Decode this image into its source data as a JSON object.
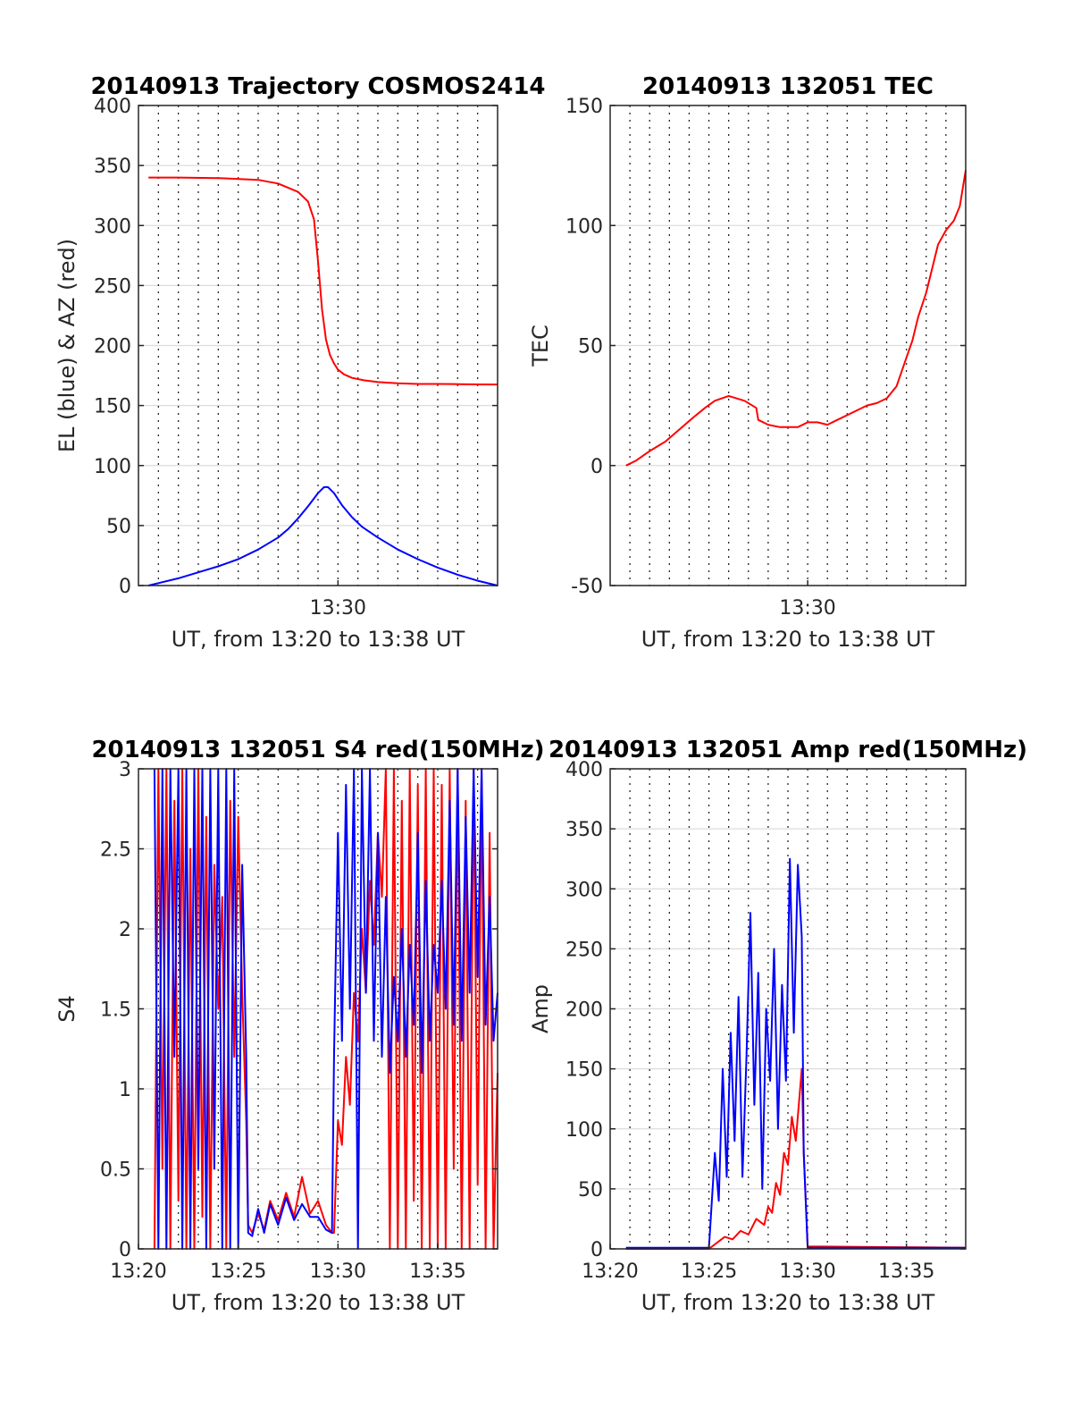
{
  "chart_data": [
    {
      "type": "line",
      "title": "20140913 Trajectory COSMOS2414",
      "xlabel": "UT, from 13:20 to 13:38 UT",
      "ylabel": "EL (blue) & AZ (red)",
      "xlim": [
        0,
        18
      ],
      "ylim": [
        0,
        400
      ],
      "x_tick_values": [
        10
      ],
      "x_tick_labels": [
        "13:30"
      ],
      "y_tick_values": [
        0,
        50,
        100,
        150,
        200,
        250,
        300,
        350,
        400
      ],
      "y_tick_labels": [
        "0",
        "50",
        "100",
        "150",
        "200",
        "250",
        "300",
        "350",
        "400"
      ],
      "grid": "x dotted every minute, y solid light",
      "series": [
        {
          "color": "#ff0000",
          "x": [
            0.5,
            2,
            4,
            6,
            7,
            8,
            8.5,
            8.8,
            9,
            9.2,
            9.4,
            9.6,
            9.8,
            10,
            10.3,
            10.7,
            11.3,
            12,
            13,
            14,
            15,
            16,
            17,
            18
          ],
          "y": [
            340,
            340,
            339.5,
            338,
            335,
            328,
            320,
            305,
            270,
            230,
            205,
            192,
            185,
            180,
            176,
            173,
            171,
            169.5,
            168.5,
            168,
            168,
            167.8,
            167.6,
            167.5
          ]
        },
        {
          "color": "#0000ff",
          "x": [
            0.5,
            1,
            2,
            3,
            4,
            5,
            6,
            7,
            7.5,
            8,
            8.5,
            9,
            9.3,
            9.5,
            9.8,
            10.2,
            10.7,
            11.2,
            12,
            13,
            14,
            15,
            16,
            17,
            18
          ],
          "y": [
            0,
            2,
            6,
            11,
            16,
            22,
            30,
            40,
            47,
            56,
            66,
            77,
            82,
            82,
            77,
            67,
            57,
            49,
            40,
            30,
            22,
            15,
            9,
            4,
            0
          ]
        }
      ]
    },
    {
      "type": "line",
      "title": "20140913 132051 TEC",
      "xlabel": "UT, from 13:20 to 13:38 UT",
      "ylabel": "TEC",
      "xlim": [
        0,
        18
      ],
      "ylim": [
        -50,
        150
      ],
      "x_tick_values": [
        10
      ],
      "x_tick_labels": [
        "13:30"
      ],
      "y_tick_values": [
        -50,
        0,
        50,
        100,
        150
      ],
      "y_tick_labels": [
        "-50",
        "0",
        "50",
        "100",
        "150"
      ],
      "grid": "x dotted every minute, y solid light",
      "series": [
        {
          "color": "#ff0000",
          "x": [
            0.8,
            1.3,
            2,
            2.8,
            3.5,
            4.2,
            4.8,
            5.3,
            6,
            6.8,
            7.4,
            7.5,
            8,
            8.6,
            9,
            9.5,
            10,
            10.5,
            11,
            11.5,
            12,
            12.5,
            13,
            13.5,
            14,
            14.5,
            15,
            15.3,
            15.6,
            16,
            16.3,
            16.6,
            17,
            17.4,
            17.7,
            18
          ],
          "y": [
            0,
            2,
            6,
            10,
            15,
            20,
            24,
            27,
            29,
            27,
            24,
            19,
            17,
            16,
            16,
            16,
            18,
            18,
            17,
            19,
            21,
            23,
            25,
            26,
            28,
            33,
            45,
            52,
            62,
            72,
            82,
            92,
            98,
            102,
            108,
            123
          ]
        }
      ]
    },
    {
      "type": "line",
      "title": "20140913 132051 S4 red(150MHz)",
      "xlabel": "UT, from 13:20 to 13:38 UT",
      "ylabel": "S4",
      "xlim": [
        0,
        18
      ],
      "ylim": [
        0,
        3
      ],
      "x_tick_values": [
        0,
        5,
        10,
        15
      ],
      "x_tick_labels": [
        "13:20",
        "13:25",
        "13:30",
        "13:35"
      ],
      "y_tick_values": [
        0,
        0.5,
        1,
        1.5,
        2,
        2.5,
        3
      ],
      "y_tick_labels": [
        "0",
        "0.5",
        "1",
        "1.5",
        "2",
        "2.5",
        "3"
      ],
      "grid": "x dotted every minute, y solid light",
      "series": [
        {
          "color": "#ff0000",
          "x": [
            0.8,
            1.0,
            1.2,
            1.4,
            1.6,
            1.8,
            2.0,
            2.2,
            2.4,
            2.6,
            2.8,
            3.0,
            3.2,
            3.4,
            3.6,
            3.8,
            4.0,
            4.2,
            4.4,
            4.6,
            4.8,
            5.0,
            5.2,
            5.4,
            5.5,
            5.7,
            6.0,
            6.3,
            6.6,
            7.0,
            7.4,
            7.8,
            8.2,
            8.6,
            9.0,
            9.4,
            9.7,
            9.8,
            10.0,
            10.2,
            10.4,
            10.6,
            10.8,
            11.0,
            11.2,
            11.4,
            11.6,
            11.8,
            12.0,
            12.2,
            12.4,
            12.6,
            12.8,
            13.0,
            13.2,
            13.4,
            13.6,
            13.8,
            14.0,
            14.2,
            14.4,
            14.6,
            14.8,
            15.0,
            15.2,
            15.4,
            15.6,
            15.8,
            16.0,
            16.2,
            16.4,
            16.6,
            16.8,
            17.0,
            17.2,
            17.4,
            17.6,
            17.8,
            18.0
          ],
          "y": [
            0,
            3,
            0.5,
            3,
            0,
            2.8,
            0.3,
            3,
            0,
            2.5,
            0,
            3,
            0.2,
            2.7,
            0,
            2.4,
            1.5,
            2.2,
            0,
            2.8,
            1.2,
            2.7,
            1.6,
            0.8,
            0.15,
            0.1,
            0.22,
            0.12,
            0.3,
            0.18,
            0.35,
            0.2,
            0.45,
            0.22,
            0.3,
            0.15,
            0.1,
            0.1,
            0.8,
            0.65,
            1.2,
            0.9,
            1.6,
            1.3,
            2.0,
            1.6,
            2.3,
            1.9,
            2.6,
            2.2,
            3,
            0,
            3,
            0,
            2.8,
            0,
            3,
            0.3,
            2.9,
            0,
            3,
            0,
            3,
            0,
            2.9,
            0,
            3,
            0.5,
            3,
            0,
            2.8,
            0,
            3,
            0.4,
            3,
            0,
            2.6,
            0,
            1.1
          ]
        },
        {
          "color": "#0000ff",
          "x": [
            0.8,
            1.0,
            1.2,
            1.4,
            1.6,
            1.8,
            2.0,
            2.2,
            2.4,
            2.6,
            2.8,
            3.0,
            3.2,
            3.4,
            3.6,
            3.8,
            4.0,
            4.2,
            4.4,
            4.6,
            4.8,
            5.0,
            5.2,
            5.4,
            5.5,
            5.7,
            6.0,
            6.3,
            6.6,
            7.0,
            7.4,
            7.8,
            8.2,
            8.6,
            9.0,
            9.4,
            9.7,
            9.8,
            10.0,
            10.2,
            10.4,
            10.6,
            10.8,
            11.0,
            11.2,
            11.4,
            11.6,
            11.8,
            12.0,
            12.2,
            12.4,
            12.6,
            12.8,
            13.0,
            13.2,
            13.4,
            13.6,
            13.8,
            14.0,
            14.2,
            14.4,
            14.6,
            14.8,
            15.0,
            15.2,
            15.4,
            15.6,
            15.8,
            16.0,
            16.2,
            16.4,
            16.6,
            16.8,
            17.0,
            17.2,
            17.4,
            17.6,
            17.8,
            18.0
          ],
          "y": [
            3,
            0,
            3,
            0,
            3,
            1.2,
            3,
            0,
            3,
            0,
            3,
            0.5,
            3,
            0,
            3,
            0.5,
            3,
            0,
            3,
            0,
            3,
            0,
            2.4,
            1.2,
            0.1,
            0.08,
            0.25,
            0.1,
            0.28,
            0.15,
            0.32,
            0.18,
            0.28,
            0.2,
            0.2,
            0.12,
            0.1,
            1.2,
            2.6,
            1.3,
            2.9,
            1.5,
            3,
            0,
            3,
            1.6,
            3,
            1.3,
            2.6,
            1.2,
            2.2,
            1.1,
            1.7,
            1.3,
            2.0,
            1.2,
            1.9,
            1.4,
            2.6,
            1.1,
            2.3,
            1.3,
            1.9,
            1.6,
            2.3,
            1.5,
            2.8,
            1.4,
            3,
            1.3,
            2.7,
            1.6,
            3,
            1.7,
            3,
            1.4,
            2.2,
            1.3,
            1.6
          ]
        }
      ]
    },
    {
      "type": "line",
      "title": "20140913 132051 Amp red(150MHz)",
      "xlabel": "UT, from 13:20 to 13:38 UT",
      "ylabel": "Amp",
      "xlim": [
        0,
        18
      ],
      "ylim": [
        0,
        400
      ],
      "x_tick_values": [
        0,
        5,
        10,
        15
      ],
      "x_tick_labels": [
        "13:20",
        "13:25",
        "13:30",
        "13:35"
      ],
      "y_tick_values": [
        0,
        50,
        100,
        150,
        200,
        250,
        300,
        350,
        400
      ],
      "y_tick_labels": [
        "0",
        "50",
        "100",
        "150",
        "200",
        "250",
        "300",
        "350",
        "400"
      ],
      "grid": "x dotted every minute, y solid light",
      "series": [
        {
          "color": "#ff0000",
          "x": [
            0.8,
            5.0,
            5.4,
            5.8,
            6.2,
            6.6,
            7.0,
            7.4,
            7.8,
            8.0,
            8.2,
            8.4,
            8.6,
            8.8,
            9.0,
            9.2,
            9.4,
            9.6,
            9.7,
            9.8,
            10.0,
            18.0
          ],
          "y": [
            0,
            0,
            5,
            10,
            8,
            15,
            12,
            25,
            20,
            35,
            30,
            55,
            45,
            80,
            70,
            110,
            90,
            130,
            150,
            80,
            2,
            1
          ]
        },
        {
          "color": "#0000ff",
          "x": [
            0.8,
            5.0,
            5.3,
            5.5,
            5.7,
            5.9,
            6.1,
            6.3,
            6.5,
            6.7,
            6.9,
            7.1,
            7.3,
            7.5,
            7.7,
            7.9,
            8.1,
            8.3,
            8.5,
            8.7,
            8.9,
            9.1,
            9.3,
            9.5,
            9.7,
            9.8,
            10.0,
            18.0
          ],
          "y": [
            1,
            1,
            80,
            40,
            150,
            60,
            180,
            90,
            210,
            60,
            160,
            280,
            120,
            230,
            50,
            200,
            140,
            250,
            100,
            220,
            140,
            325,
            180,
            320,
            260,
            80,
            1,
            1
          ]
        }
      ]
    }
  ]
}
